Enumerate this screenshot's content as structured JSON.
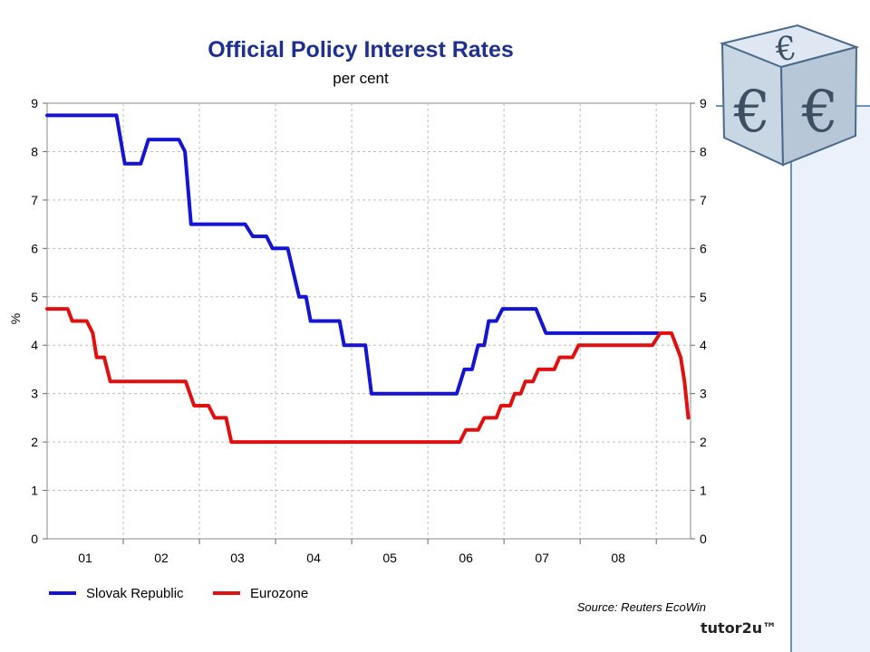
{
  "brand": "tutor2u™",
  "logo": {
    "symbol": "€"
  },
  "colors": {
    "slovak": "#1414d2",
    "eurozone": "#e01010",
    "title": "#1f2f8f",
    "panel": "#eaf1fb",
    "panel_border": "#6b8fc4"
  },
  "chart_data": {
    "type": "line",
    "title": "Official Policy Interest Rates",
    "subtitle": "per cent",
    "ylabel": "%",
    "xlabel": "",
    "xlim": [
      2000.5,
      2008.95
    ],
    "ylim": [
      0,
      9
    ],
    "yticks": [
      "0",
      "1",
      "2",
      "3",
      "4",
      "5",
      "6",
      "7",
      "8",
      "9"
    ],
    "xtick_labels": [
      "01",
      "02",
      "03",
      "04",
      "05",
      "06",
      "07",
      "08"
    ],
    "xtick_centers": [
      2001.0,
      2002.0,
      2003.0,
      2004.0,
      2005.0,
      2006.0,
      2007.0,
      2008.0
    ],
    "xtick_bounds": [
      2001.5,
      2002.5,
      2003.5,
      2004.5,
      2005.5,
      2006.5,
      2007.5,
      2008.5
    ],
    "grid": true,
    "legend": "bottom-left",
    "source": "Source: Reuters EcoWin",
    "series": [
      {
        "name": "Slovak Republic",
        "points": [
          [
            2000.5,
            8.75
          ],
          [
            2001.41,
            8.75
          ],
          [
            2001.52,
            7.75
          ],
          [
            2001.73,
            7.75
          ],
          [
            2001.83,
            8.25
          ],
          [
            2002.23,
            8.25
          ],
          [
            2002.31,
            8.0
          ],
          [
            2002.39,
            6.5
          ],
          [
            2003.1,
            6.5
          ],
          [
            2003.2,
            6.25
          ],
          [
            2003.38,
            6.25
          ],
          [
            2003.46,
            6.0
          ],
          [
            2003.66,
            6.0
          ],
          [
            2003.81,
            5.0
          ],
          [
            2003.9,
            5.0
          ],
          [
            2003.96,
            4.5
          ],
          [
            2004.34,
            4.5
          ],
          [
            2004.4,
            4.0
          ],
          [
            2004.68,
            4.0
          ],
          [
            2004.76,
            3.0
          ],
          [
            2005.88,
            3.0
          ],
          [
            2005.98,
            3.5
          ],
          [
            2006.08,
            3.5
          ],
          [
            2006.16,
            4.0
          ],
          [
            2006.24,
            4.0
          ],
          [
            2006.3,
            4.5
          ],
          [
            2006.4,
            4.5
          ],
          [
            2006.48,
            4.75
          ],
          [
            2006.92,
            4.75
          ],
          [
            2007.05,
            4.25
          ],
          [
            2008.52,
            4.25
          ]
        ]
      },
      {
        "name": "Eurozone",
        "points": [
          [
            2000.5,
            4.75
          ],
          [
            2000.77,
            4.75
          ],
          [
            2000.83,
            4.5
          ],
          [
            2001.02,
            4.5
          ],
          [
            2001.1,
            4.25
          ],
          [
            2001.15,
            3.75
          ],
          [
            2001.25,
            3.75
          ],
          [
            2001.33,
            3.25
          ],
          [
            2002.32,
            3.25
          ],
          [
            2002.43,
            2.75
          ],
          [
            2002.62,
            2.75
          ],
          [
            2002.7,
            2.5
          ],
          [
            2002.85,
            2.5
          ],
          [
            2002.92,
            2.0
          ],
          [
            2005.92,
            2.0
          ],
          [
            2006.0,
            2.25
          ],
          [
            2006.16,
            2.25
          ],
          [
            2006.24,
            2.5
          ],
          [
            2006.4,
            2.5
          ],
          [
            2006.46,
            2.75
          ],
          [
            2006.58,
            2.75
          ],
          [
            2006.64,
            3.0
          ],
          [
            2006.72,
            3.0
          ],
          [
            2006.78,
            3.25
          ],
          [
            2006.88,
            3.25
          ],
          [
            2006.95,
            3.5
          ],
          [
            2007.16,
            3.5
          ],
          [
            2007.23,
            3.75
          ],
          [
            2007.4,
            3.75
          ],
          [
            2007.48,
            4.0
          ],
          [
            2008.45,
            4.0
          ],
          [
            2008.55,
            4.25
          ],
          [
            2008.7,
            4.25
          ],
          [
            2008.82,
            3.75
          ],
          [
            2008.87,
            3.25
          ],
          [
            2008.92,
            2.5
          ]
        ]
      }
    ]
  }
}
